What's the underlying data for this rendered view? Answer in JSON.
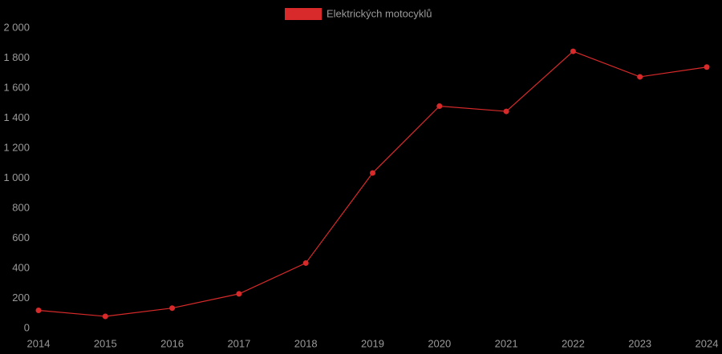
{
  "chart_data": {
    "type": "line",
    "categories": [
      "2014",
      "2015",
      "2016",
      "2017",
      "2018",
      "2019",
      "2020",
      "2021",
      "2022",
      "2023",
      "2024"
    ],
    "series": [
      {
        "name": "Elektrických motocyklů",
        "color": "#d82a2a",
        "values": [
          120,
          80,
          135,
          230,
          435,
          1035,
          1480,
          1445,
          1845,
          1675,
          1740
        ]
      }
    ],
    "ylim": [
      0,
      2000
    ],
    "yticks": [
      0,
      200,
      400,
      600,
      800,
      {
        "value": 1000,
        "label": "1 000"
      },
      {
        "value": 1200,
        "label": "1 200"
      },
      {
        "value": 1400,
        "label": "1 400"
      },
      {
        "value": 1600,
        "label": "1 600"
      },
      {
        "value": 1800,
        "label": "1 800"
      },
      {
        "value": 2000,
        "label": "2 000"
      }
    ],
    "grid": false,
    "legend": "top"
  }
}
